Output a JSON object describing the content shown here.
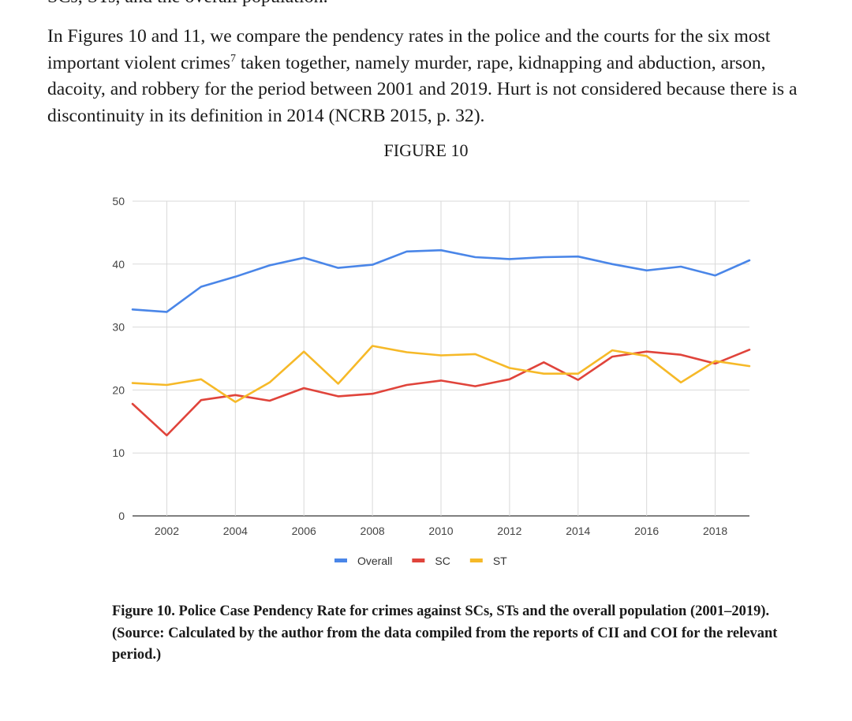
{
  "page": {
    "cutoff_line": "SCs, STs, and the overall population.",
    "paragraph": {
      "before_sup": "In Figures 10 and 11, we compare the pendency rates in the police and the courts for the six most important violent crimes",
      "footnote_marker": "7",
      "after_sup": " taken together, namely murder, rape, kidnapping and abduction, arson, dacoity, and robbery for the period between 2001 and 2019. Hurt is not considered because there is a discontinuity in its definition in 2014 (NCRB 2015, p. 32)."
    },
    "figure_heading": "FIGURE 10",
    "caption": {
      "line1": "Figure 10. Police Case Pendency Rate for crimes against SCs, STs and the overall population (2001–2019).",
      "line2": "(Source: Calculated by the author from the data compiled from the reports of CII and COI for the relevant period.)"
    }
  },
  "chart_data": {
    "type": "line",
    "title": "",
    "xlabel": "",
    "ylabel": "",
    "x": [
      2001,
      2002,
      2003,
      2004,
      2005,
      2006,
      2007,
      2008,
      2009,
      2010,
      2011,
      2012,
      2013,
      2014,
      2015,
      2016,
      2017,
      2018,
      2019
    ],
    "x_ticks": [
      2002,
      2004,
      2006,
      2008,
      2010,
      2012,
      2014,
      2016,
      2018
    ],
    "x_tick_labels": [
      "2002",
      "2004",
      "2006",
      "2008",
      "2010",
      "2012",
      "2014",
      "2016",
      "2018"
    ],
    "xlim": [
      2001,
      2019
    ],
    "ylim": [
      0,
      50
    ],
    "y_ticks": [
      0,
      10,
      20,
      30,
      40,
      50
    ],
    "y_tick_labels": [
      "0",
      "10",
      "20",
      "30",
      "40",
      "50"
    ],
    "grid": true,
    "legend_position": "bottom",
    "series": [
      {
        "name": "Overall",
        "color": "#4a86e8",
        "values": [
          32.8,
          32.4,
          36.4,
          38.0,
          39.8,
          41.0,
          39.4,
          39.9,
          42.0,
          42.2,
          41.1,
          40.8,
          41.1,
          41.2,
          40.0,
          39.0,
          39.6,
          38.2,
          40.6
        ]
      },
      {
        "name": "SC",
        "color": "#e0443b",
        "values": [
          17.8,
          12.8,
          18.4,
          19.2,
          18.3,
          20.3,
          19.0,
          19.4,
          20.8,
          21.5,
          20.6,
          21.7,
          24.4,
          21.6,
          25.3,
          26.1,
          25.6,
          24.2,
          26.4
        ]
      },
      {
        "name": "ST",
        "color": "#f6b928",
        "values": [
          21.1,
          20.8,
          21.7,
          18.1,
          21.2,
          26.1,
          21.0,
          27.0,
          26.0,
          25.5,
          25.7,
          23.5,
          22.6,
          22.6,
          26.3,
          25.4,
          21.2,
          24.6,
          23.8
        ]
      }
    ]
  }
}
